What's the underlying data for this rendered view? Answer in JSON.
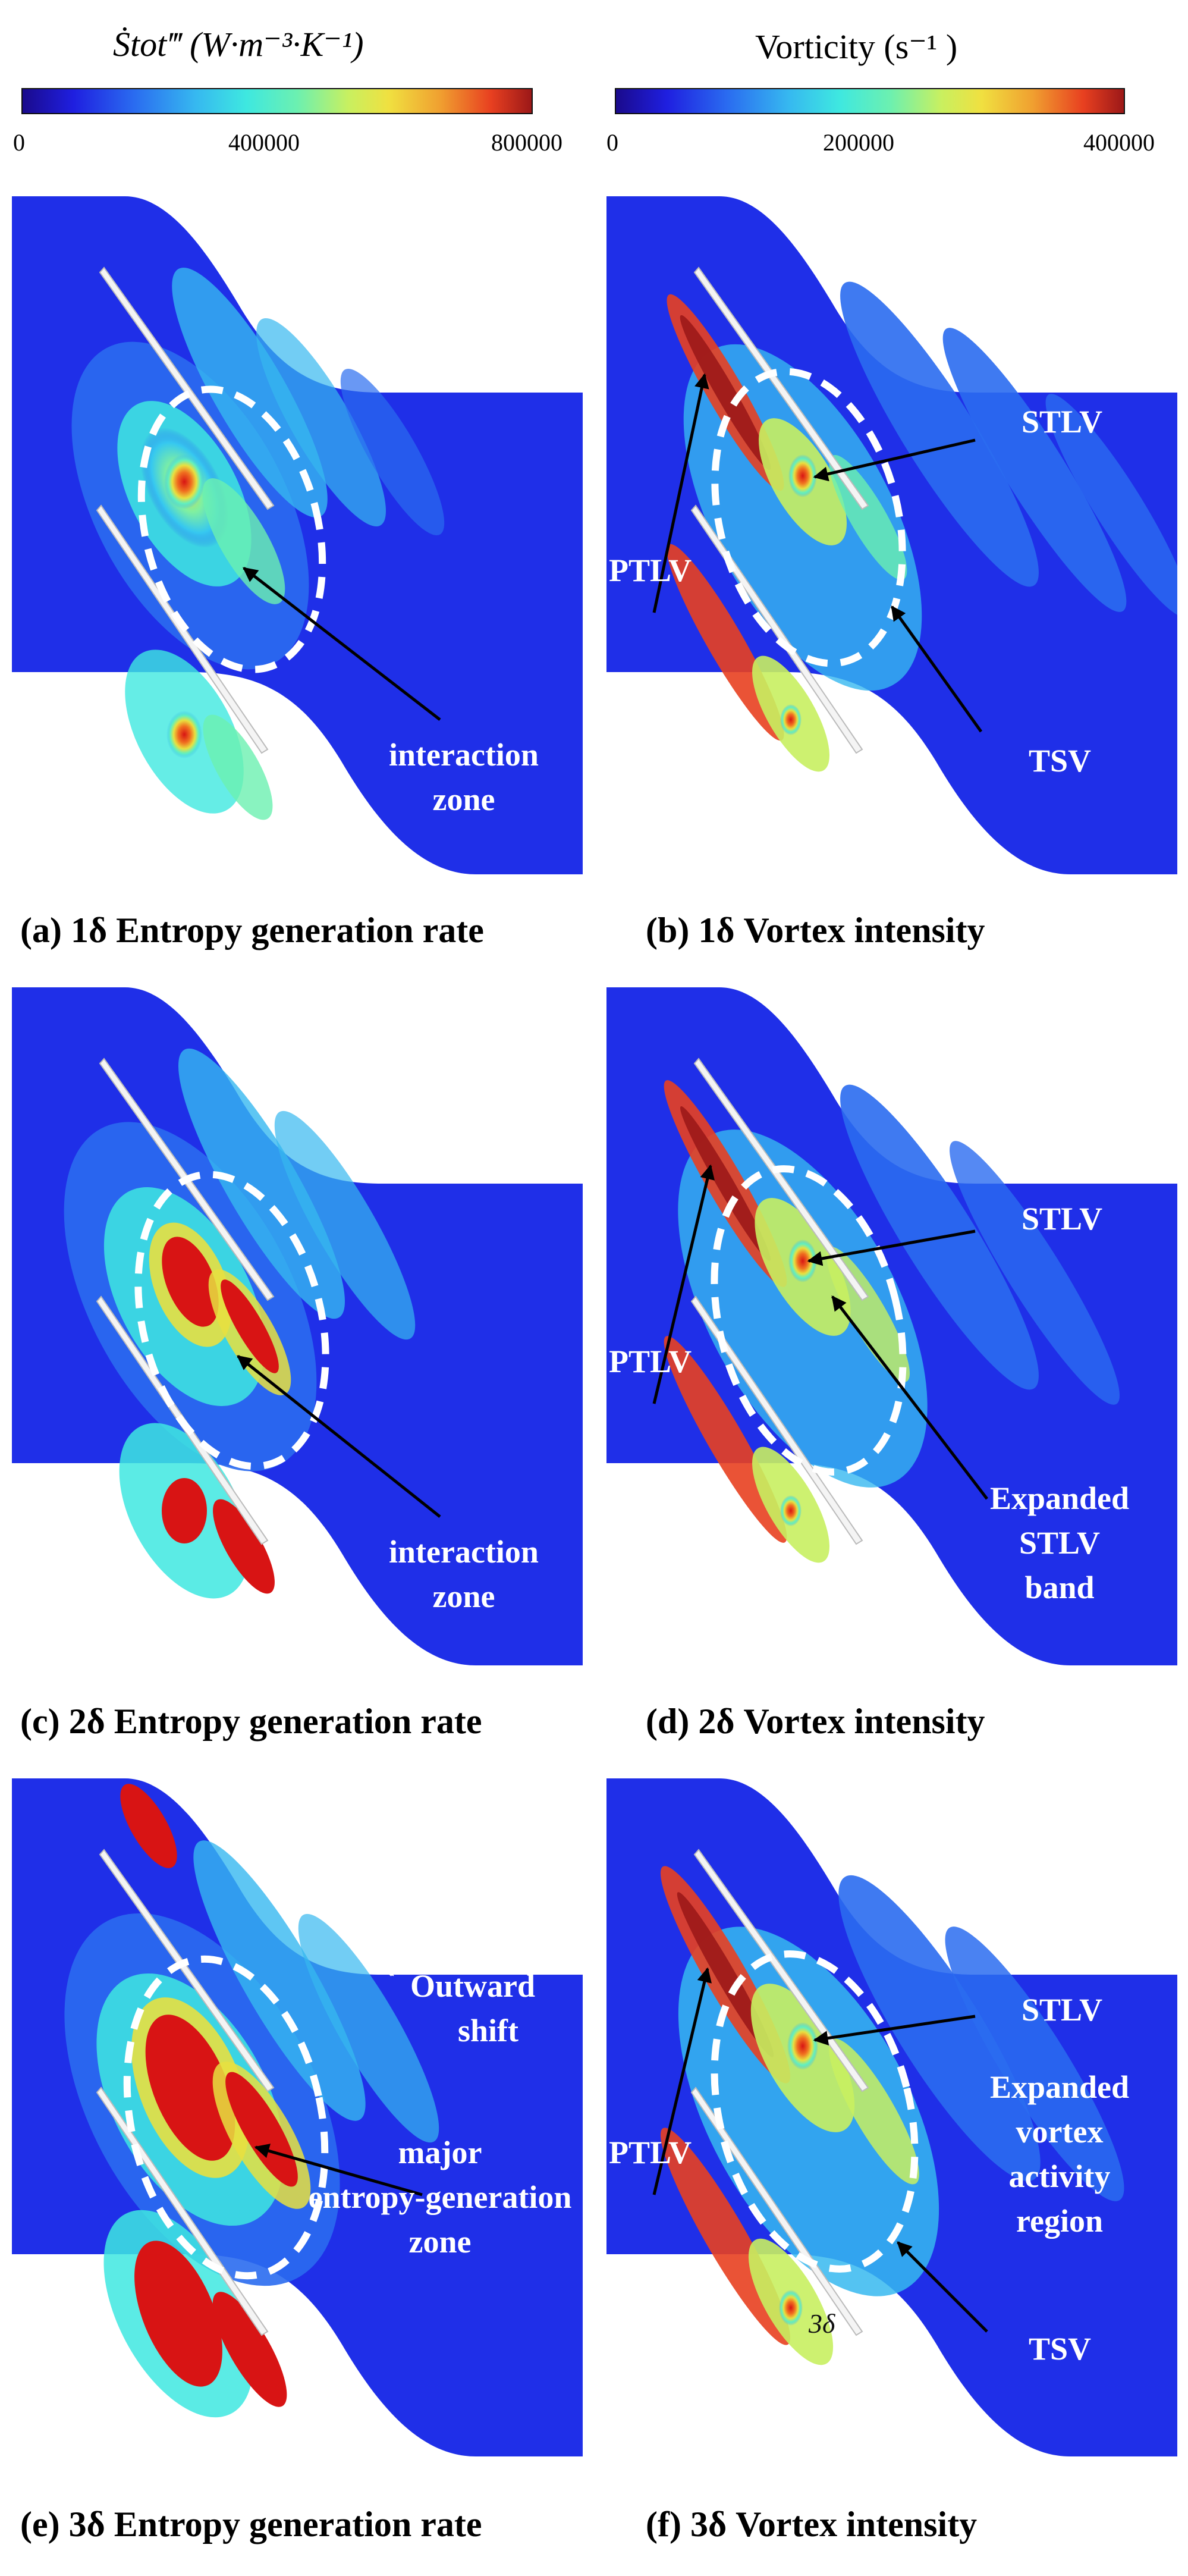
{
  "colorbars": {
    "entropy": {
      "title_lhs": "Ṡtot‴",
      "title_units": "(W·m⁻³·K⁻¹)",
      "ticks": [
        "0",
        "400000",
        "800000"
      ],
      "min": 0,
      "max": 800000
    },
    "vorticity": {
      "title": "Vorticity (s⁻¹ )",
      "ticks": [
        "0",
        "200000",
        "400000"
      ],
      "min": 0,
      "max": 400000
    },
    "colormap": [
      "#1a0a8c",
      "#1f1fe0",
      "#2a6cf0",
      "#36b8f0",
      "#3ee8e0",
      "#6cf0b0",
      "#c8f060",
      "#f0e040",
      "#f0a030",
      "#e84020",
      "#9c1818"
    ]
  },
  "panels": [
    {
      "caption": "(a) 1δ Entropy generation rate",
      "labels": [
        "interaction",
        "zone"
      ]
    },
    {
      "caption": "(b) 1δ Vortex intensity",
      "labels": [
        "PTLV",
        "STLV",
        "TSV"
      ]
    },
    {
      "caption": "(c) 2δ Entropy generation rate",
      "labels": [
        "interaction",
        "zone"
      ]
    },
    {
      "caption": "(d) 2δ Vortex intensity",
      "labels": [
        "PTLV",
        "STLV",
        "Expanded",
        "STLV",
        "band"
      ]
    },
    {
      "caption": "(e) 3δ Entropy generation rate",
      "labels": [
        "Outward",
        "shift",
        "major",
        "entropy-generation",
        "zone"
      ]
    },
    {
      "caption": "(f) 3δ Vortex intensity",
      "labels": [
        "PTLV",
        "STLV",
        "Expanded",
        "vortex",
        "activity",
        "region",
        "TSV",
        "3δ"
      ]
    }
  ],
  "colors": {
    "background_field": "#1f2fe8",
    "annotation": "#ffffff",
    "arrow": "#000000"
  }
}
